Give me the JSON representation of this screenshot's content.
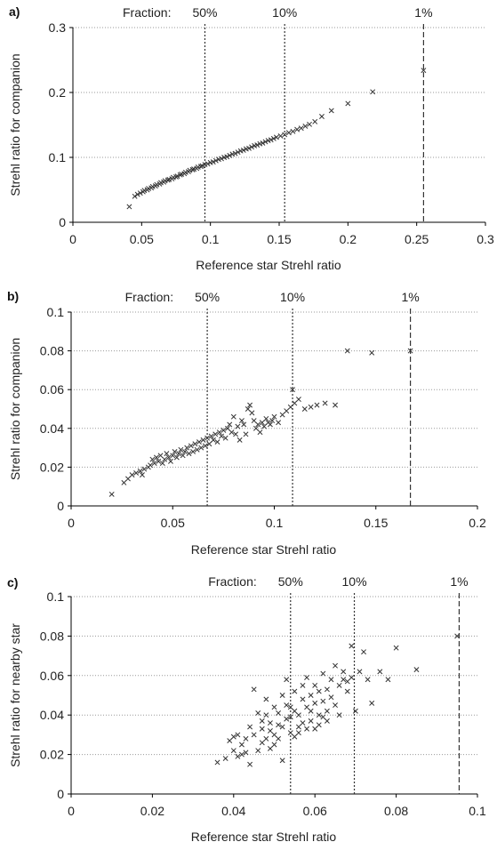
{
  "chart_data": [
    {
      "type": "scatter",
      "panel_label": "a)",
      "xlabel": "Reference star Strehl ratio",
      "ylabel": "Strehl ratio for companion",
      "xlim": [
        0,
        0.3
      ],
      "ylim": [
        0,
        0.3
      ],
      "xticks": [
        "0",
        "0.05",
        "0.1",
        "0.15",
        "0.2",
        "0.25",
        "0.3"
      ],
      "xtick_values": [
        0,
        0.05,
        0.1,
        0.15,
        0.2,
        0.25,
        0.3
      ],
      "yticks": [
        "0",
        "0.1",
        "0.2",
        "0.3"
      ],
      "ytick_values": [
        0,
        0.1,
        0.2,
        0.3
      ],
      "grid": "horizontal dotted",
      "fraction_label": "Fraction:",
      "fraction_lines": [
        {
          "label": "50%",
          "x": 0.096,
          "style": "dotted"
        },
        {
          "label": "10%",
          "x": 0.154,
          "style": "dotted"
        },
        {
          "label": "1%",
          "x": 0.255,
          "style": "dashed"
        }
      ],
      "points": [
        [
          0.041,
          0.024
        ],
        [
          0.045,
          0.04
        ],
        [
          0.047,
          0.043
        ],
        [
          0.049,
          0.045
        ],
        [
          0.051,
          0.047
        ],
        [
          0.052,
          0.049
        ],
        [
          0.054,
          0.05
        ],
        [
          0.055,
          0.052
        ],
        [
          0.057,
          0.053
        ],
        [
          0.058,
          0.055
        ],
        [
          0.06,
          0.056
        ],
        [
          0.061,
          0.058
        ],
        [
          0.063,
          0.059
        ],
        [
          0.064,
          0.061
        ],
        [
          0.066,
          0.062
        ],
        [
          0.067,
          0.064
        ],
        [
          0.069,
          0.065
        ],
        [
          0.07,
          0.066
        ],
        [
          0.072,
          0.067
        ],
        [
          0.073,
          0.069
        ],
        [
          0.075,
          0.07
        ],
        [
          0.076,
          0.071
        ],
        [
          0.078,
          0.073
        ],
        [
          0.079,
          0.074
        ],
        [
          0.081,
          0.075
        ],
        [
          0.082,
          0.077
        ],
        [
          0.084,
          0.078
        ],
        [
          0.085,
          0.08
        ],
        [
          0.087,
          0.081
        ],
        [
          0.088,
          0.082
        ],
        [
          0.09,
          0.083
        ],
        [
          0.091,
          0.085
        ],
        [
          0.093,
          0.086
        ],
        [
          0.094,
          0.087
        ],
        [
          0.096,
          0.089
        ],
        [
          0.098,
          0.09
        ],
        [
          0.1,
          0.092
        ],
        [
          0.102,
          0.093
        ],
        [
          0.104,
          0.095
        ],
        [
          0.106,
          0.097
        ],
        [
          0.108,
          0.098
        ],
        [
          0.11,
          0.1
        ],
        [
          0.112,
          0.101
        ],
        [
          0.114,
          0.103
        ],
        [
          0.116,
          0.105
        ],
        [
          0.118,
          0.106
        ],
        [
          0.12,
          0.108
        ],
        [
          0.122,
          0.11
        ],
        [
          0.124,
          0.111
        ],
        [
          0.126,
          0.113
        ],
        [
          0.128,
          0.114
        ],
        [
          0.13,
          0.116
        ],
        [
          0.132,
          0.118
        ],
        [
          0.134,
          0.119
        ],
        [
          0.136,
          0.121
        ],
        [
          0.138,
          0.122
        ],
        [
          0.14,
          0.124
        ],
        [
          0.142,
          0.126
        ],
        [
          0.144,
          0.127
        ],
        [
          0.146,
          0.129
        ],
        [
          0.148,
          0.131
        ],
        [
          0.151,
          0.133
        ],
        [
          0.154,
          0.135
        ],
        [
          0.157,
          0.138
        ],
        [
          0.16,
          0.14
        ],
        [
          0.163,
          0.143
        ],
        [
          0.166,
          0.145
        ],
        [
          0.169,
          0.148
        ],
        [
          0.172,
          0.151
        ],
        [
          0.176,
          0.155
        ],
        [
          0.181,
          0.163
        ],
        [
          0.188,
          0.172
        ],
        [
          0.2,
          0.183
        ],
        [
          0.218,
          0.201
        ],
        [
          0.255,
          0.234
        ]
      ]
    },
    {
      "type": "scatter",
      "panel_label": "b)",
      "xlabel": "Reference star Strehl ratio",
      "ylabel": "Strehl ratio for companion",
      "xlim": [
        0,
        0.2
      ],
      "ylim": [
        0,
        0.1
      ],
      "xticks": [
        "0",
        "0.05",
        "0.1",
        "0.15",
        "0.2"
      ],
      "xtick_values": [
        0,
        0.05,
        0.1,
        0.15,
        0.2
      ],
      "yticks": [
        "0",
        "0.02",
        "0.04",
        "0.06",
        "0.08",
        "0.1"
      ],
      "ytick_values": [
        0,
        0.02,
        0.04,
        0.06,
        0.08,
        0.1
      ],
      "grid": "horizontal dotted",
      "fraction_label": "Fraction:",
      "fraction_lines": [
        {
          "label": "50%",
          "x": 0.067,
          "style": "dotted"
        },
        {
          "label": "10%",
          "x": 0.109,
          "style": "dotted"
        },
        {
          "label": "1%",
          "x": 0.167,
          "style": "dashed"
        }
      ],
      "points": [
        [
          0.02,
          0.006
        ],
        [
          0.026,
          0.012
        ],
        [
          0.028,
          0.014
        ],
        [
          0.03,
          0.016
        ],
        [
          0.032,
          0.017
        ],
        [
          0.034,
          0.018
        ],
        [
          0.035,
          0.016
        ],
        [
          0.036,
          0.019
        ],
        [
          0.038,
          0.02
        ],
        [
          0.039,
          0.021
        ],
        [
          0.04,
          0.024
        ],
        [
          0.041,
          0.022
        ],
        [
          0.042,
          0.025
        ],
        [
          0.043,
          0.023
        ],
        [
          0.044,
          0.026
        ],
        [
          0.045,
          0.022
        ],
        [
          0.046,
          0.024
        ],
        [
          0.047,
          0.027
        ],
        [
          0.048,
          0.025
        ],
        [
          0.049,
          0.023
        ],
        [
          0.05,
          0.026
        ],
        [
          0.051,
          0.028
        ],
        [
          0.052,
          0.025
        ],
        [
          0.053,
          0.027
        ],
        [
          0.054,
          0.029
        ],
        [
          0.055,
          0.026
        ],
        [
          0.056,
          0.028
        ],
        [
          0.057,
          0.03
        ],
        [
          0.058,
          0.027
        ],
        [
          0.059,
          0.031
        ],
        [
          0.06,
          0.028
        ],
        [
          0.061,
          0.032
        ],
        [
          0.062,
          0.029
        ],
        [
          0.063,
          0.033
        ],
        [
          0.064,
          0.03
        ],
        [
          0.065,
          0.034
        ],
        [
          0.066,
          0.031
        ],
        [
          0.067,
          0.035
        ],
        [
          0.068,
          0.032
        ],
        [
          0.069,
          0.036
        ],
        [
          0.07,
          0.034
        ],
        [
          0.071,
          0.037
        ],
        [
          0.072,
          0.033
        ],
        [
          0.073,
          0.038
        ],
        [
          0.074,
          0.036
        ],
        [
          0.075,
          0.039
        ],
        [
          0.076,
          0.035
        ],
        [
          0.077,
          0.04
        ],
        [
          0.078,
          0.042
        ],
        [
          0.079,
          0.038
        ],
        [
          0.08,
          0.046
        ],
        [
          0.081,
          0.037
        ],
        [
          0.082,
          0.041
        ],
        [
          0.083,
          0.034
        ],
        [
          0.084,
          0.044
        ],
        [
          0.085,
          0.042
        ],
        [
          0.086,
          0.037
        ],
        [
          0.087,
          0.05
        ],
        [
          0.088,
          0.052
        ],
        [
          0.089,
          0.048
        ],
        [
          0.09,
          0.044
        ],
        [
          0.091,
          0.04
        ],
        [
          0.092,
          0.042
        ],
        [
          0.093,
          0.038
        ],
        [
          0.094,
          0.043
        ],
        [
          0.095,
          0.041
        ],
        [
          0.096,
          0.045
        ],
        [
          0.097,
          0.043
        ],
        [
          0.098,
          0.042
        ],
        [
          0.099,
          0.044
        ],
        [
          0.1,
          0.046
        ],
        [
          0.102,
          0.043
        ],
        [
          0.104,
          0.047
        ],
        [
          0.106,
          0.049
        ],
        [
          0.108,
          0.051
        ],
        [
          0.109,
          0.06
        ],
        [
          0.11,
          0.053
        ],
        [
          0.112,
          0.055
        ],
        [
          0.115,
          0.05
        ],
        [
          0.118,
          0.051
        ],
        [
          0.121,
          0.052
        ],
        [
          0.125,
          0.053
        ],
        [
          0.13,
          0.052
        ],
        [
          0.136,
          0.08
        ],
        [
          0.148,
          0.079
        ],
        [
          0.167,
          0.08
        ]
      ]
    },
    {
      "type": "scatter",
      "panel_label": "c)",
      "xlabel": "Reference star Strehl ratio",
      "ylabel": "Strehl ratio for nearby star",
      "xlim": [
        0,
        0.1
      ],
      "ylim": [
        0,
        0.1
      ],
      "xticks": [
        "0",
        "0.02",
        "0.04",
        "0.06",
        "0.08",
        "0.1"
      ],
      "xtick_values": [
        0,
        0.02,
        0.04,
        0.06,
        0.08,
        0.1
      ],
      "yticks": [
        "0",
        "0.02",
        "0.04",
        "0.06",
        "0.08",
        "0.1"
      ],
      "ytick_values": [
        0,
        0.02,
        0.04,
        0.06,
        0.08,
        0.1
      ],
      "grid": "horizontal dotted",
      "fraction_label": "Fraction:",
      "fraction_lines": [
        {
          "label": "50%",
          "x": 0.054,
          "style": "dotted"
        },
        {
          "label": "10%",
          "x": 0.0697,
          "style": "dotted"
        },
        {
          "label": "1%",
          "x": 0.0955,
          "style": "dashed"
        }
      ],
      "points": [
        [
          0.036,
          0.016
        ],
        [
          0.038,
          0.018
        ],
        [
          0.039,
          0.027
        ],
        [
          0.04,
          0.022
        ],
        [
          0.04,
          0.029
        ],
        [
          0.041,
          0.019
        ],
        [
          0.041,
          0.03
        ],
        [
          0.042,
          0.02
        ],
        [
          0.042,
          0.025
        ],
        [
          0.043,
          0.028
        ],
        [
          0.043,
          0.021
        ],
        [
          0.044,
          0.015
        ],
        [
          0.044,
          0.034
        ],
        [
          0.045,
          0.03
        ],
        [
          0.045,
          0.053
        ],
        [
          0.046,
          0.041
        ],
        [
          0.046,
          0.022
        ],
        [
          0.047,
          0.026
        ],
        [
          0.047,
          0.033
        ],
        [
          0.047,
          0.037
        ],
        [
          0.048,
          0.028
        ],
        [
          0.048,
          0.04
        ],
        [
          0.048,
          0.048
        ],
        [
          0.049,
          0.032
        ],
        [
          0.049,
          0.023
        ],
        [
          0.049,
          0.036
        ],
        [
          0.05,
          0.044
        ],
        [
          0.05,
          0.03
        ],
        [
          0.05,
          0.025
        ],
        [
          0.051,
          0.035
        ],
        [
          0.051,
          0.041
        ],
        [
          0.051,
          0.028
        ],
        [
          0.052,
          0.034
        ],
        [
          0.052,
          0.017
        ],
        [
          0.052,
          0.05
        ],
        [
          0.053,
          0.045
        ],
        [
          0.053,
          0.038
        ],
        [
          0.053,
          0.058
        ],
        [
          0.054,
          0.031
        ],
        [
          0.054,
          0.039
        ],
        [
          0.054,
          0.044
        ],
        [
          0.055,
          0.042
        ],
        [
          0.055,
          0.029
        ],
        [
          0.055,
          0.052
        ],
        [
          0.056,
          0.034
        ],
        [
          0.056,
          0.04
        ],
        [
          0.056,
          0.031
        ],
        [
          0.057,
          0.036
        ],
        [
          0.057,
          0.048
        ],
        [
          0.057,
          0.055
        ],
        [
          0.058,
          0.033
        ],
        [
          0.058,
          0.044
        ],
        [
          0.058,
          0.059
        ],
        [
          0.059,
          0.042
        ],
        [
          0.059,
          0.05
        ],
        [
          0.059,
          0.037
        ],
        [
          0.06,
          0.046
        ],
        [
          0.06,
          0.033
        ],
        [
          0.06,
          0.055
        ],
        [
          0.061,
          0.04
        ],
        [
          0.061,
          0.052
        ],
        [
          0.061,
          0.035
        ],
        [
          0.062,
          0.047
        ],
        [
          0.062,
          0.061
        ],
        [
          0.062,
          0.039
        ],
        [
          0.063,
          0.053
        ],
        [
          0.063,
          0.042
        ],
        [
          0.063,
          0.037
        ],
        [
          0.064,
          0.058
        ],
        [
          0.064,
          0.049
        ],
        [
          0.065,
          0.065
        ],
        [
          0.065,
          0.045
        ],
        [
          0.066,
          0.055
        ],
        [
          0.066,
          0.04
        ],
        [
          0.067,
          0.062
        ],
        [
          0.067,
          0.058
        ],
        [
          0.068,
          0.057
        ],
        [
          0.068,
          0.052
        ],
        [
          0.069,
          0.059
        ],
        [
          0.069,
          0.075
        ],
        [
          0.07,
          0.042
        ],
        [
          0.071,
          0.062
        ],
        [
          0.072,
          0.072
        ],
        [
          0.073,
          0.058
        ],
        [
          0.074,
          0.046
        ],
        [
          0.076,
          0.062
        ],
        [
          0.078,
          0.058
        ],
        [
          0.08,
          0.074
        ],
        [
          0.085,
          0.063
        ],
        [
          0.095,
          0.08
        ]
      ]
    }
  ]
}
